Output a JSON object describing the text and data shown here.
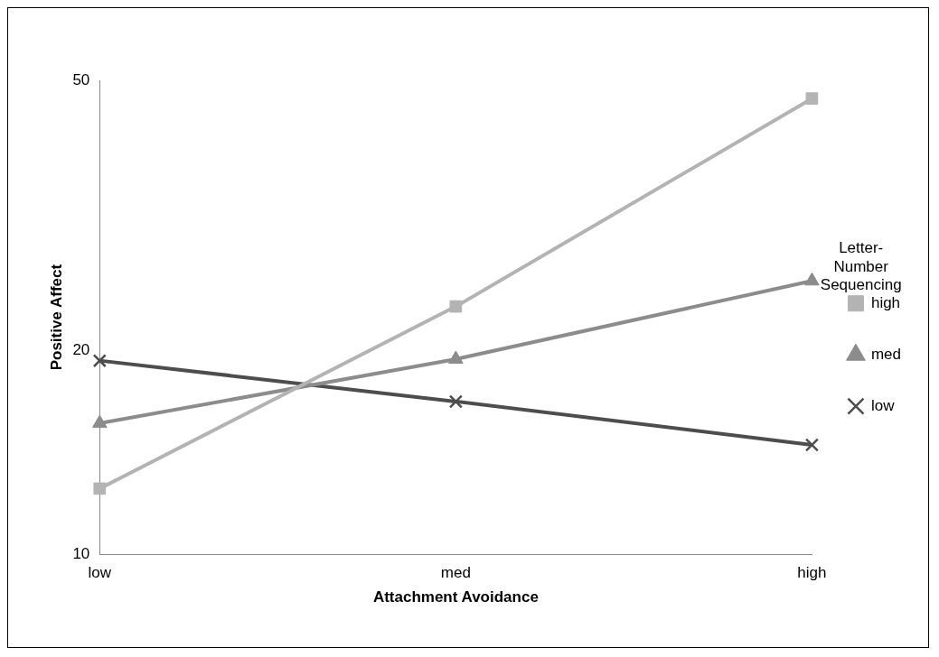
{
  "chart_data": {
    "type": "line",
    "xlabel": "Attachment Avoidance",
    "ylabel": "Positive Affect",
    "legend_title": "Letter-Number Sequencing",
    "legend": "right",
    "log": "y",
    "grid": false,
    "categories": [
      "low",
      "med",
      "high"
    ],
    "ylim": [
      10,
      50
    ],
    "yticks": [
      10,
      20,
      50
    ],
    "series": [
      {
        "name": "high",
        "color": "#b3b3b3",
        "marker": "square",
        "values": [
          12.5,
          23.2,
          47
        ]
      },
      {
        "name": "med",
        "color": "#8c8c8c",
        "marker": "triangle",
        "values": [
          15.6,
          19.4,
          25.3
        ]
      },
      {
        "name": "low",
        "color": "#4d4d4d",
        "marker": "cross",
        "values": [
          19.3,
          16.8,
          14.5
        ]
      }
    ]
  }
}
